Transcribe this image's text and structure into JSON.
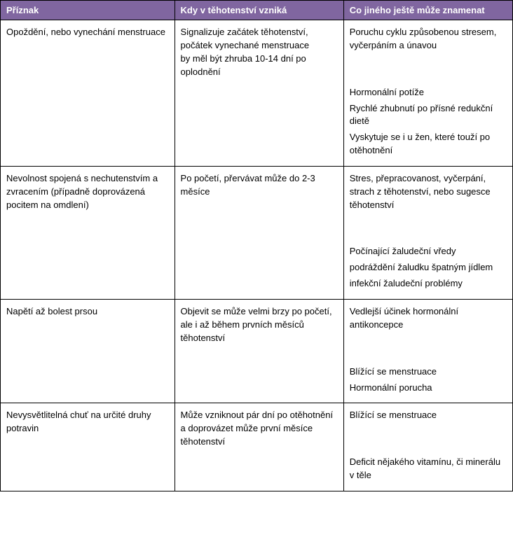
{
  "header_bg_color": "#8066a0",
  "header_text_color": "#ffffff",
  "border_color": "#000000",
  "background_color": "#ffffff",
  "font_size": 13,
  "columns": {
    "c1": "Příznak",
    "c2": "Kdy v těhotenství vzniká",
    "c3": "Co jiného ještě může znamenat"
  },
  "rows": [
    {
      "priznak": "Opoždění, nebo vynechání menstruace",
      "kdy": "Signalizuje začátek těhotenství,\npočátek vynechané menstruace\nby měl být zhruba 10-14 dní po oplodnění",
      "co_first": "Poruchu cyklu způsobenou stresem,\nvyčerpáním a únavou",
      "co_rest": [
        "Hormonální potíže",
        "Rychlé zhubnutí po přísné redukční dietě",
        "Vyskytuje se i u žen, které touží po otěhotnění"
      ]
    },
    {
      "priznak": "Nevolnost spojená s nechutenstvím a zvracením (případně doprovázená pocitem na omdlení)",
      "kdy": "Po početí, přervávat může do 2-3 měsíce",
      "co_first": "Stres, přepracovanost, vyčerpání, strach z těhotenství, nebo sugesce těhotenství",
      "co_rest": [
        "Počínající žaludeční vředy",
        "podráždění žaludku špatným jídlem",
        "infekční žaludeční problémy"
      ]
    },
    {
      "priznak": " Napětí až bolest prsou",
      "kdy": "Objevit se může velmi brzy po početí,\nale i až během prvních měsíců těhotenství",
      "co_first": "Vedlejší účinek hormonální antikoncepce",
      "co_rest": [
        "Blížící se menstruace",
        "Hormonální porucha"
      ]
    },
    {
      "priznak": "Nevysvětlitelná chuť na určité druhy potravin",
      "kdy": "Může vzniknout pár dní po otěhotnění\na doprovázet může první měsíce těhotenství",
      "co_first": "Blížící se menstruace",
      "co_rest": [
        "Deficit nějakého vitamínu, či minerálu v těle"
      ]
    }
  ]
}
